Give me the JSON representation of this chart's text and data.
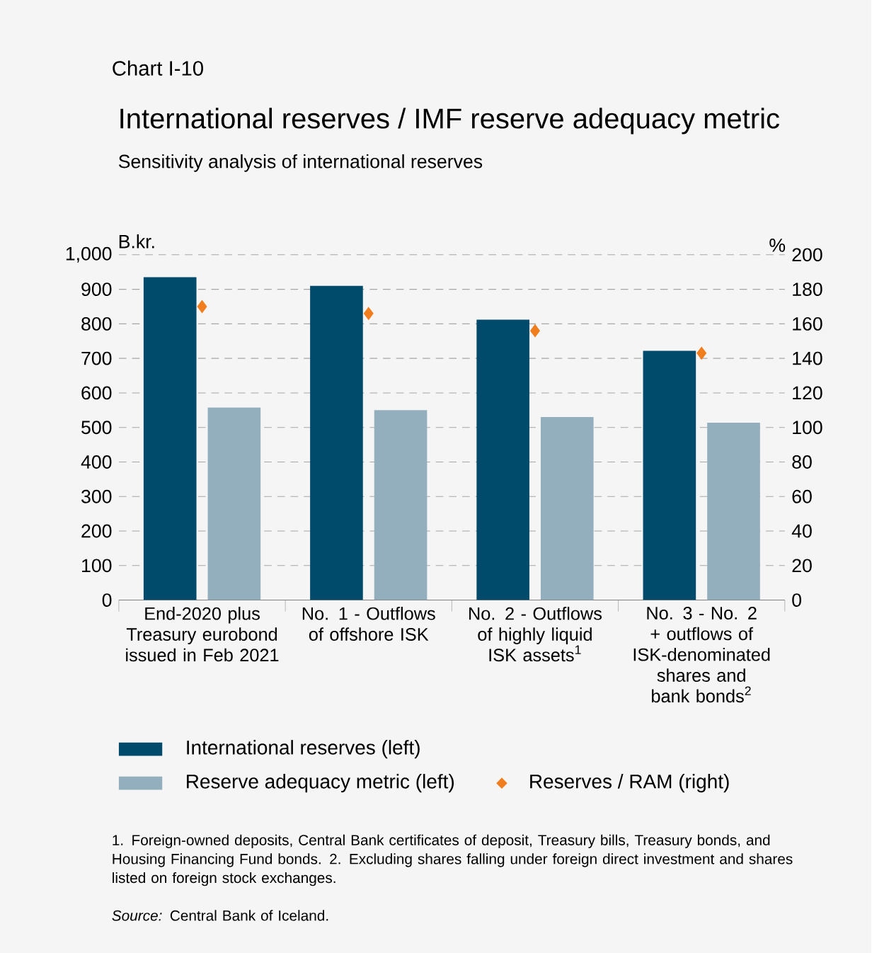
{
  "chart_data": {
    "type": "bar",
    "title": "International reserves / IMF reserve adequacy metric",
    "subtitle": "Sensitivity analysis of international reserves",
    "ylabel": "B.kr.",
    "y2label": "%",
    "categories": [
      "End-2020 plus Treasury eurobond issued in Feb 2021",
      "No. 1 - Outflows of offshore ISK",
      "No. 2 - Outflows of highly liquid ISK assets$^{1}$",
      "No. 3 - No. 2 + outflows of ISK-denominated shares and bank bonds$^{2}$"
    ],
    "series": [
      {
        "name": "International reserves (left)",
        "color": "#004b6b",
        "values": [
          935,
          910,
          812,
          722
        ]
      },
      {
        "name": "Reserve adequacy metric (left)",
        "color": "#93afbe",
        "values": [
          558,
          550,
          530,
          514
        ]
      },
      {
        "name": "Reserves / RAM (right)",
        "type": "scatter",
        "axis": "y2",
        "marker": "diamond",
        "color": "#f07d1e",
        "values": [
          170,
          166,
          156,
          143
        ]
      }
    ],
    "ylim": [
      0,
      1000
    ],
    "yticks": [
      0,
      100,
      200,
      300,
      400,
      500,
      600,
      700,
      800,
      900,
      {
        "value": 1000,
        "label": "1,000"
      }
    ],
    "y2lim": [
      0,
      200
    ],
    "y2ticks": [
      0,
      20,
      40,
      60,
      80,
      100,
      120,
      140,
      160,
      180,
      200
    ],
    "grid": "y",
    "legend": "bottom",
    "annotations": [
      "Chart I-10",
      "1. Foreign-owned deposits, Central Bank certificates of deposit, Treasury bills, Treasury bonds, and Housing Financing Fund bonds. 2. Excluding shares falling under foreign direct investment and shares listed on foreign stock exchanges.",
      "*Source:* Central Bank of Iceland."
    ]
  }
}
